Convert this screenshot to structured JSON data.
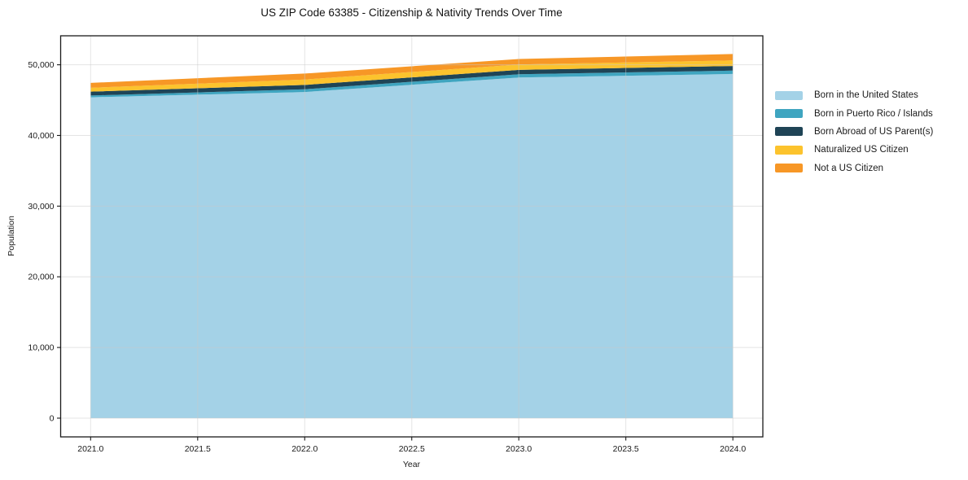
{
  "chart_data": {
    "type": "area",
    "stacked": true,
    "title": "US ZIP Code 63385 - Citizenship & Nativity Trends Over Time",
    "xlabel": "Year",
    "ylabel": "Population",
    "x": [
      2021,
      2022,
      2023,
      2024
    ],
    "series": [
      {
        "name": "Born in the United States",
        "color": "#a4d2e7",
        "values": [
          45400,
          46150,
          48200,
          48700
        ]
      },
      {
        "name": "Born in Puerto Rico / Islands",
        "color": "#3fa5c0",
        "values": [
          250,
          390,
          460,
          470
        ]
      },
      {
        "name": "Born Abroad of US Parent(s)",
        "color": "#1f4456",
        "values": [
          550,
          610,
          620,
          660
        ]
      },
      {
        "name": "Naturalized US Citizen",
        "color": "#fcc32d",
        "values": [
          550,
          770,
          760,
          780
        ]
      },
      {
        "name": "Not a US Citizen",
        "color": "#f79726",
        "values": [
          680,
          840,
          780,
          910
        ]
      }
    ],
    "stack_totals": [
      47430,
      48760,
      50820,
      51520
    ],
    "xticks": [
      "2021.0",
      "2021.5",
      "2022.0",
      "2022.5",
      "2023.0",
      "2023.5",
      "2024.0"
    ],
    "yticks": [
      "0",
      "10,000",
      "20,000",
      "30,000",
      "40,000",
      "50,000"
    ],
    "xlim": [
      2020.86,
      2024.14
    ],
    "ylim": [
      -2650,
      54100
    ],
    "grid": true,
    "legend_position": "right-outside"
  }
}
